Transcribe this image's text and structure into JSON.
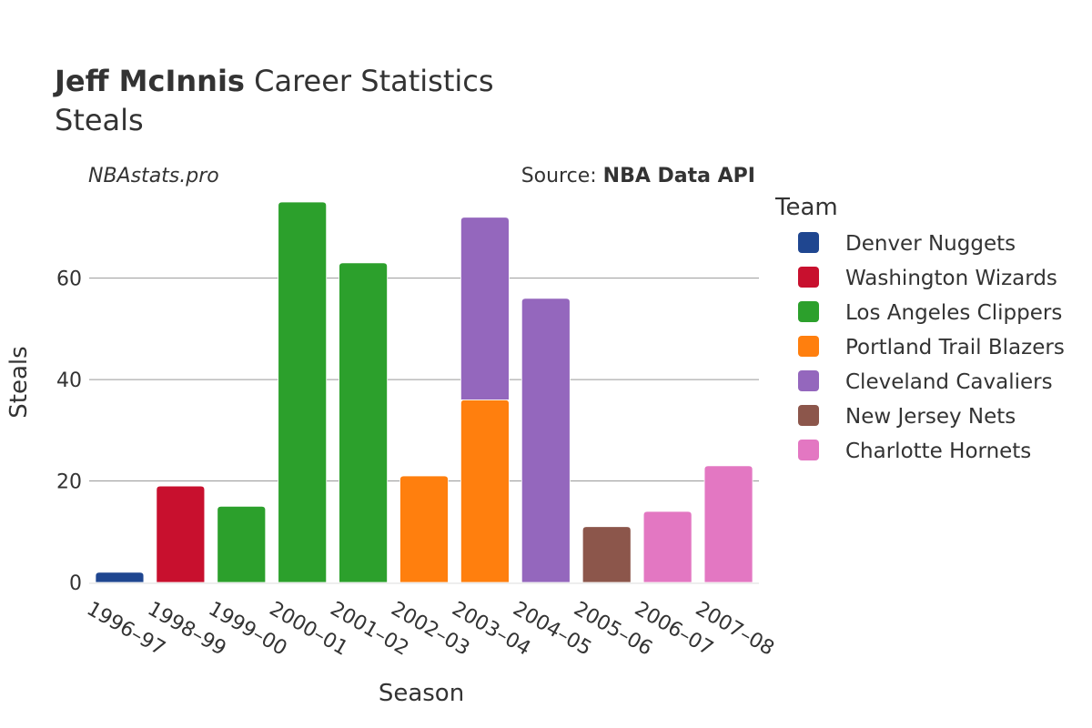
{
  "chart_data": {
    "type": "bar",
    "title_name": "Jeff McInnis",
    "title_rest": " Career Statistics",
    "subtitle": "Steals",
    "watermark": "NBAstats.pro",
    "source_prefix": "Source: ",
    "source_name": "NBA Data API",
    "xlabel": "Season",
    "ylabel": "Steals",
    "ylim": [
      0,
      75
    ],
    "yticks": [
      0,
      20,
      40,
      60
    ],
    "legend_title": "Team",
    "legend_position": "right",
    "categories": [
      "1996–97",
      "1998–99",
      "1999–00",
      "2000–01",
      "2001–02",
      "2002–03",
      "2003–04",
      "2004–05",
      "2005–06",
      "2006–07",
      "2007–08"
    ],
    "series": [
      {
        "name": "Denver Nuggets",
        "color": "#1f4690",
        "values": [
          2,
          0,
          0,
          0,
          0,
          0,
          0,
          0,
          0,
          0,
          0
        ]
      },
      {
        "name": "Washington Wizards",
        "color": "#c8102e",
        "values": [
          0,
          19,
          0,
          0,
          0,
          0,
          0,
          0,
          0,
          0,
          0
        ]
      },
      {
        "name": "Los Angeles Clippers",
        "color": "#2ca02c",
        "values": [
          0,
          0,
          15,
          75,
          63,
          0,
          0,
          0,
          0,
          0,
          0
        ]
      },
      {
        "name": "Portland Trail Blazers",
        "color": "#ff7f0e",
        "values": [
          0,
          0,
          0,
          0,
          0,
          21,
          36,
          0,
          0,
          0,
          0
        ]
      },
      {
        "name": "Cleveland Cavaliers",
        "color": "#9467bd",
        "values": [
          0,
          0,
          0,
          0,
          0,
          0,
          36,
          56,
          0,
          0,
          0
        ]
      },
      {
        "name": "New Jersey Nets",
        "color": "#8c564b",
        "values": [
          0,
          0,
          0,
          0,
          0,
          0,
          0,
          0,
          11,
          0,
          0
        ]
      },
      {
        "name": "Charlotte Hornets",
        "color": "#e377c2",
        "values": [
          0,
          0,
          0,
          0,
          0,
          0,
          0,
          0,
          0,
          14,
          23
        ]
      }
    ]
  }
}
